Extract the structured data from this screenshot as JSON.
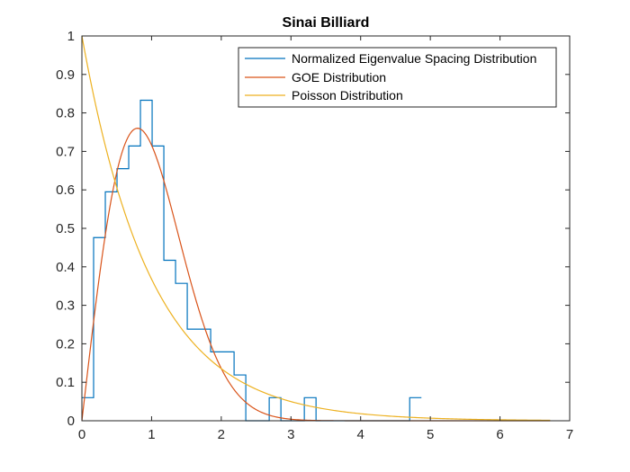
{
  "chart_data": {
    "type": "line",
    "title": "Sinai Billiard",
    "xlabel": "",
    "ylabel": "",
    "xlim": [
      0,
      7
    ],
    "ylim": [
      0,
      1
    ],
    "xticks": [
      0,
      1,
      2,
      3,
      4,
      5,
      6,
      7
    ],
    "yticks": [
      0,
      0.1,
      0.2,
      0.3,
      0.4,
      0.5,
      0.6,
      0.7,
      0.8,
      0.9,
      1
    ],
    "xtick_labels": [
      "0",
      "1",
      "2",
      "3",
      "4",
      "5",
      "6",
      "7"
    ],
    "ytick_labels": [
      "0",
      "0.1",
      "0.2",
      "0.3",
      "0.4",
      "0.5",
      "0.6",
      "0.7",
      "0.8",
      "0.9",
      "1"
    ],
    "legend_position": "top-right",
    "series": [
      {
        "name": "Normalized Eigenvalue Spacing Distribution",
        "kind": "stairs",
        "color": "#0072BD",
        "edges": [
          0,
          0.168,
          0.336,
          0.504,
          0.672,
          0.84,
          1.008,
          1.176,
          1.344,
          1.512,
          1.68,
          1.848,
          2.016,
          2.184,
          2.352,
          2.52,
          2.688,
          2.856,
          3.024,
          3.192,
          3.36,
          3.528,
          3.696,
          3.864,
          4.032,
          4.2,
          4.368,
          4.536,
          4.704,
          4.872
        ],
        "values": [
          0.06,
          0.476,
          0.595,
          0.655,
          0.714,
          0.833,
          0.714,
          0.417,
          0.357,
          0.238,
          0.238,
          0.179,
          0.179,
          0.119,
          0,
          0,
          0.06,
          0,
          0,
          0.06,
          0,
          0,
          0,
          0,
          0,
          0,
          0,
          0,
          0.06
        ]
      },
      {
        "name": "GOE Distribution",
        "kind": "function",
        "formula": "(pi/2) s exp(-pi s^2 / 4)",
        "color": "#D95319",
        "x_range": [
          0,
          6.72
        ]
      },
      {
        "name": "Poisson Distribution",
        "kind": "function",
        "formula": "exp(-s)",
        "color": "#EDB120",
        "x_range": [
          0,
          6.72
        ]
      }
    ]
  }
}
